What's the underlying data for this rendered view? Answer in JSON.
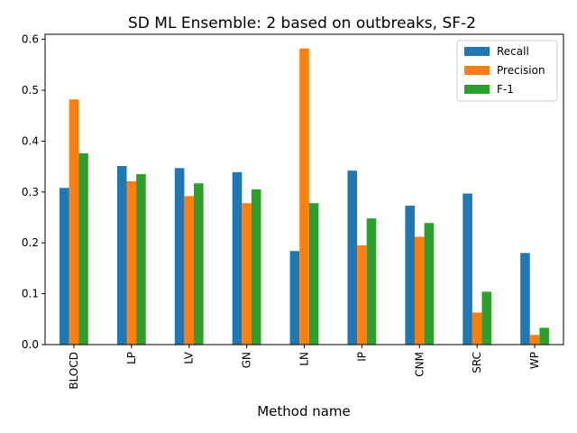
{
  "chart_data": {
    "type": "bar",
    "title": "SD ML Ensemble: 2 based on outbreaks, SF-2",
    "xlabel": "Method name",
    "ylabel": "",
    "ylim": [
      0,
      0.61
    ],
    "yticks": [
      0.0,
      0.1,
      0.2,
      0.3,
      0.4,
      0.5,
      0.6
    ],
    "ytick_labels": [
      "0.0",
      "0.1",
      "0.2",
      "0.3",
      "0.4",
      "0.5",
      "0.6"
    ],
    "categories": [
      "BLOCD",
      "LP",
      "LV",
      "GN",
      "LN",
      "IP",
      "CNM",
      "SRC",
      "WP"
    ],
    "series": [
      {
        "name": "Recall",
        "color": "#1f77b4",
        "values": [
          0.308,
          0.351,
          0.347,
          0.339,
          0.184,
          0.342,
          0.273,
          0.297,
          0.18
        ]
      },
      {
        "name": "Precision",
        "color": "#ff7f0e",
        "values": [
          0.482,
          0.321,
          0.292,
          0.278,
          0.582,
          0.195,
          0.212,
          0.063,
          0.019
        ]
      },
      {
        "name": "F-1",
        "color": "#2ca02c",
        "values": [
          0.376,
          0.335,
          0.317,
          0.305,
          0.278,
          0.248,
          0.239,
          0.104,
          0.033
        ]
      }
    ],
    "grid": false,
    "legend_position": "top-right"
  }
}
